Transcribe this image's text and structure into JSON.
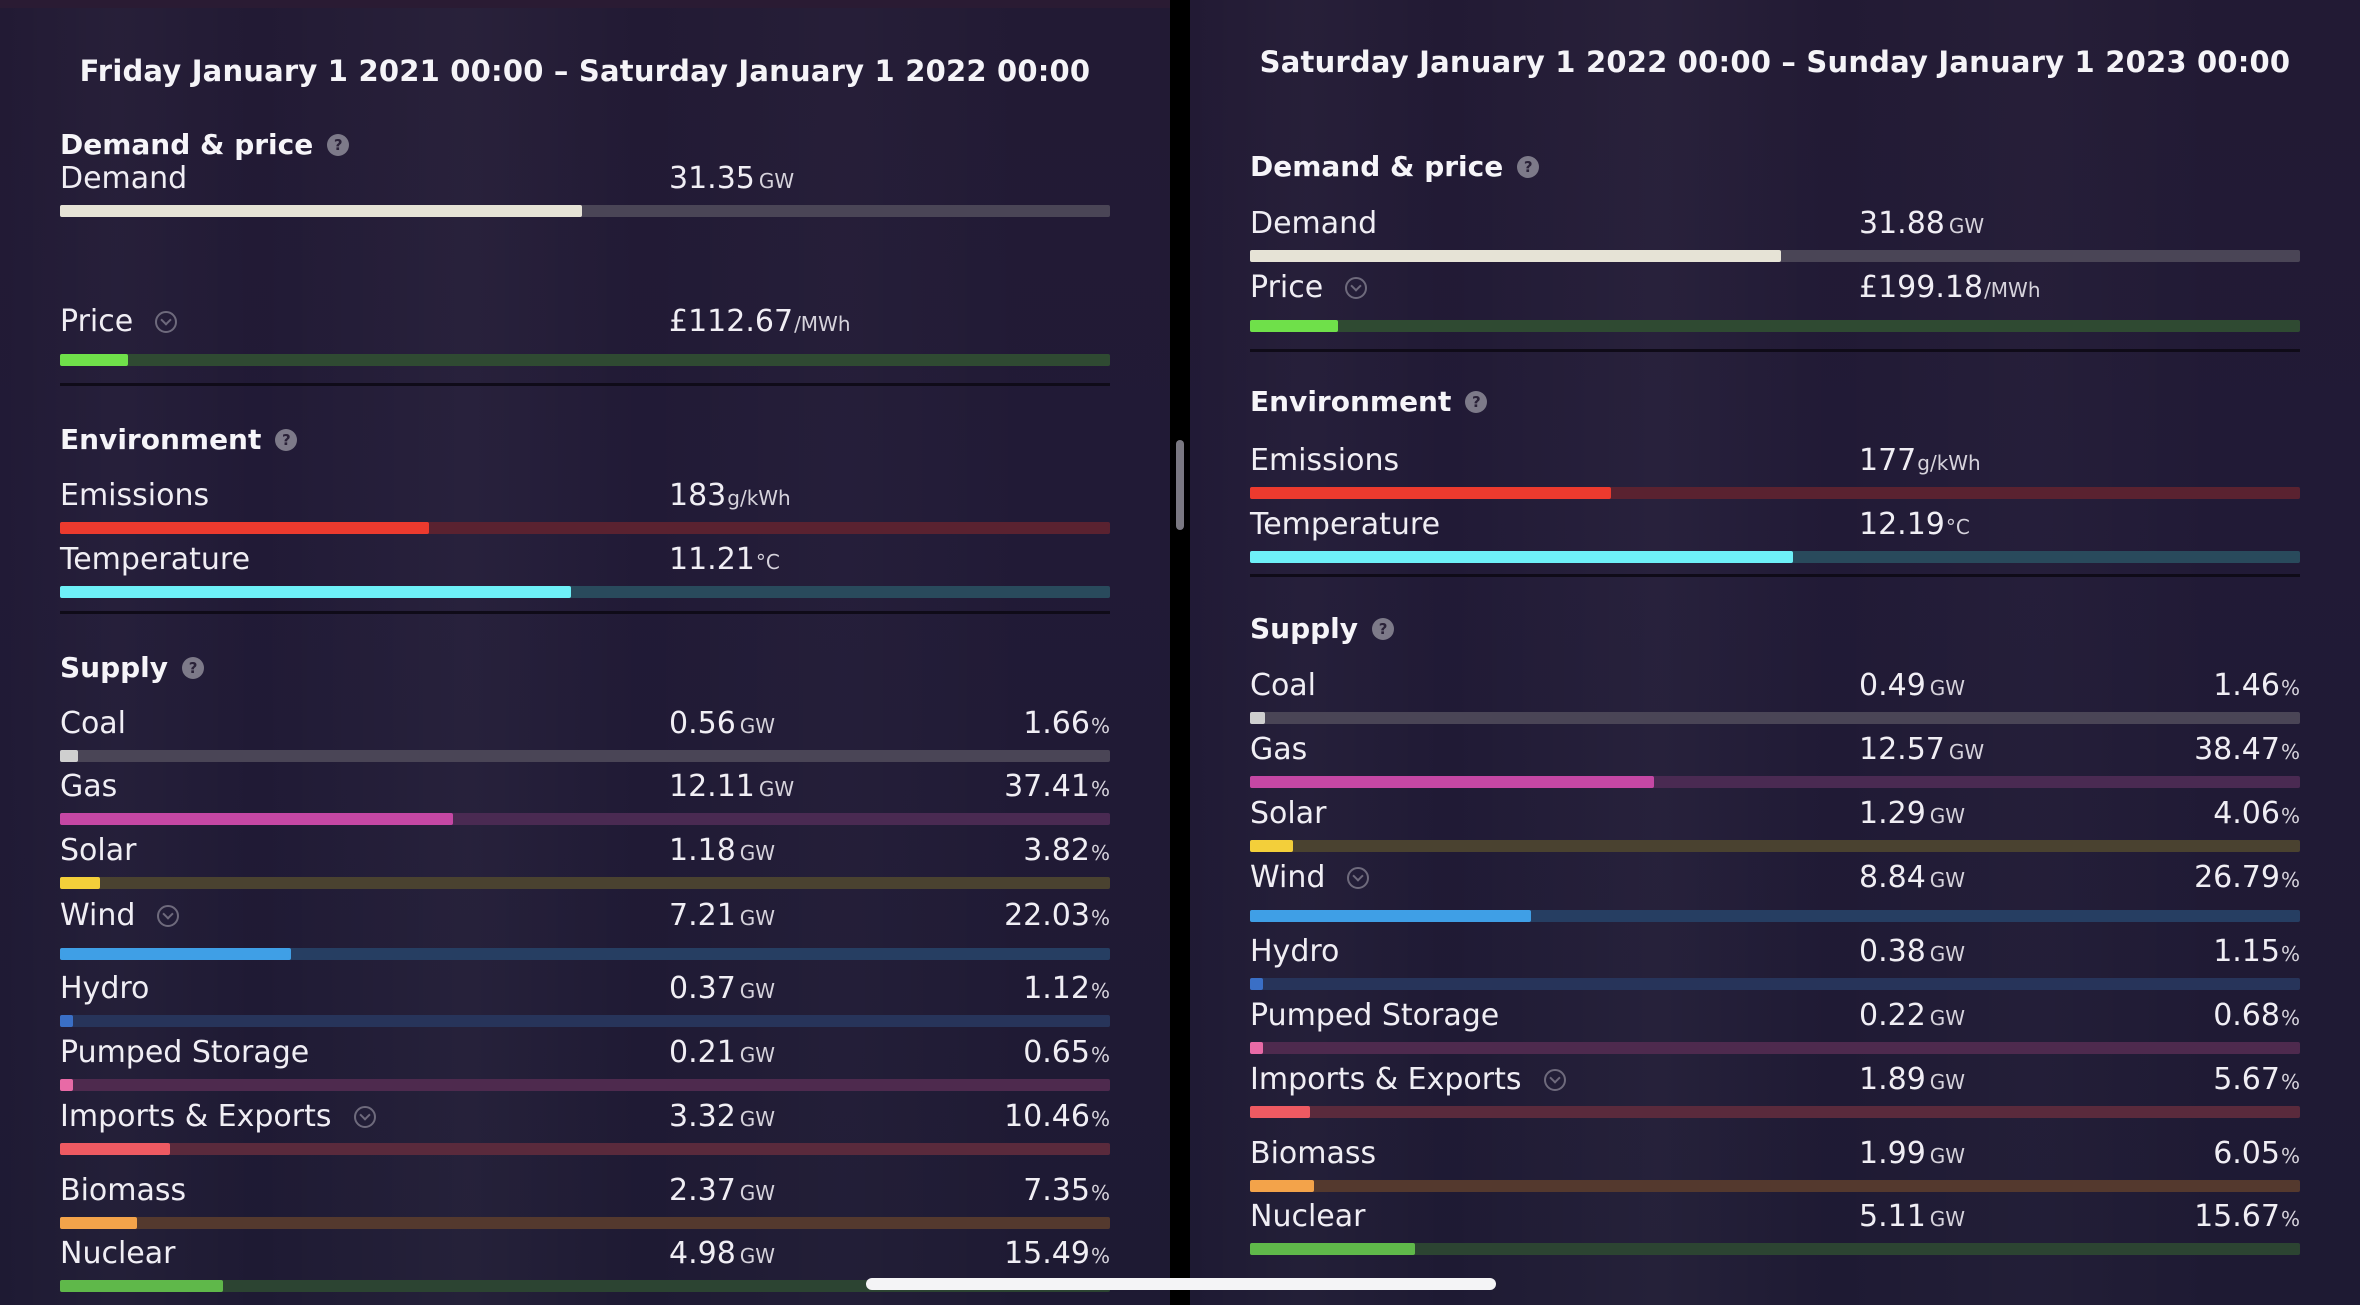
{
  "left": {
    "period": "Friday January 1 2021 00:00 – Saturday January 1 2022 00:00",
    "demand_section": "Demand & price",
    "demand": {
      "label": "Demand",
      "value": "31.35",
      "unit": "GW",
      "level": 0.497
    },
    "price": {
      "label": "Price",
      "value": "£112.67",
      "unit": "/MWh",
      "level": 0.065
    },
    "environment_section": "Environment",
    "emissions": {
      "label": "Emissions",
      "value": "183",
      "unit": "g/kWh",
      "level": 0.351
    },
    "temperature": {
      "label": "Temperature",
      "value": "11.21",
      "unit": "°C",
      "level": 0.487
    },
    "supply_section": "Supply",
    "supply": [
      {
        "label": "Coal",
        "value": "0.56",
        "unit": "GW",
        "pct": "1.66",
        "level": 0.017
      },
      {
        "label": "Gas",
        "value": "12.11",
        "unit": "GW",
        "pct": "37.41",
        "level": 0.374
      },
      {
        "label": "Solar",
        "value": "1.18",
        "unit": "GW",
        "pct": "3.82",
        "level": 0.038
      },
      {
        "label": "Wind",
        "value": "7.21",
        "unit": "GW",
        "pct": "22.03",
        "level": 0.22
      },
      {
        "label": "Hydro",
        "value": "0.37",
        "unit": "GW",
        "pct": "1.12",
        "level": 0.011
      },
      {
        "label": "Pumped Storage",
        "value": "0.21",
        "unit": "GW",
        "pct": "0.65",
        "level": 0.0065
      },
      {
        "label": "Imports & Exports",
        "value": "3.32",
        "unit": "GW",
        "pct": "10.46",
        "level": 0.105
      },
      {
        "label": "Biomass",
        "value": "2.37",
        "unit": "GW",
        "pct": "7.35",
        "level": 0.0735
      },
      {
        "label": "Nuclear",
        "value": "4.98",
        "unit": "GW",
        "pct": "15.49",
        "level": 0.155
      }
    ]
  },
  "right": {
    "period": "Saturday January 1 2022 00:00 – Sunday January 1 2023 00:00",
    "demand_section": "Demand & price",
    "demand": {
      "label": "Demand",
      "value": "31.88",
      "unit": "GW",
      "level": 0.506
    },
    "price": {
      "label": "Price",
      "value": "£199.18",
      "unit": "/MWh",
      "level": 0.084
    },
    "environment_section": "Environment",
    "emissions": {
      "label": "Emissions",
      "value": "177",
      "unit": "g/kWh",
      "level": 0.344
    },
    "temperature": {
      "label": "Temperature",
      "value": "12.19",
      "unit": "°C",
      "level": 0.517
    },
    "supply_section": "Supply",
    "supply": [
      {
        "label": "Coal",
        "value": "0.49",
        "unit": "GW",
        "pct": "1.46",
        "level": 0.0146
      },
      {
        "label": "Gas",
        "value": "12.57",
        "unit": "GW",
        "pct": "38.47",
        "level": 0.385
      },
      {
        "label": "Solar",
        "value": "1.29",
        "unit": "GW",
        "pct": "4.06",
        "level": 0.041
      },
      {
        "label": "Wind",
        "value": "8.84",
        "unit": "GW",
        "pct": "26.79",
        "level": 0.268
      },
      {
        "label": "Hydro",
        "value": "0.38",
        "unit": "GW",
        "pct": "1.15",
        "level": 0.0115
      },
      {
        "label": "Pumped Storage",
        "value": "0.22",
        "unit": "GW",
        "pct": "0.68",
        "level": 0.0068
      },
      {
        "label": "Imports & Exports",
        "value": "1.89",
        "unit": "GW",
        "pct": "5.67",
        "level": 0.057
      },
      {
        "label": "Biomass",
        "value": "1.99",
        "unit": "GW",
        "pct": "6.05",
        "level": 0.0605
      },
      {
        "label": "Nuclear",
        "value": "5.11",
        "unit": "GW",
        "pct": "15.67",
        "level": 0.157
      }
    ]
  },
  "help_glyph": "?",
  "pct_unit": "%",
  "colors": {
    "demand": "#e6e3d6",
    "price": "#6fe04a",
    "emissions": "#ec3a2e",
    "temperature": "#6ef0f8",
    "coal": "#cfcfcf",
    "gas": "#c547a4",
    "solar": "#f3cf3a",
    "wind": "#3f9fe6",
    "hydro": "#3a6fc6",
    "pumped_storage": "#e86aa6",
    "imports_exports": "#ee5a62",
    "biomass": "#f3a34a",
    "nuclear": "#5fb84a"
  }
}
